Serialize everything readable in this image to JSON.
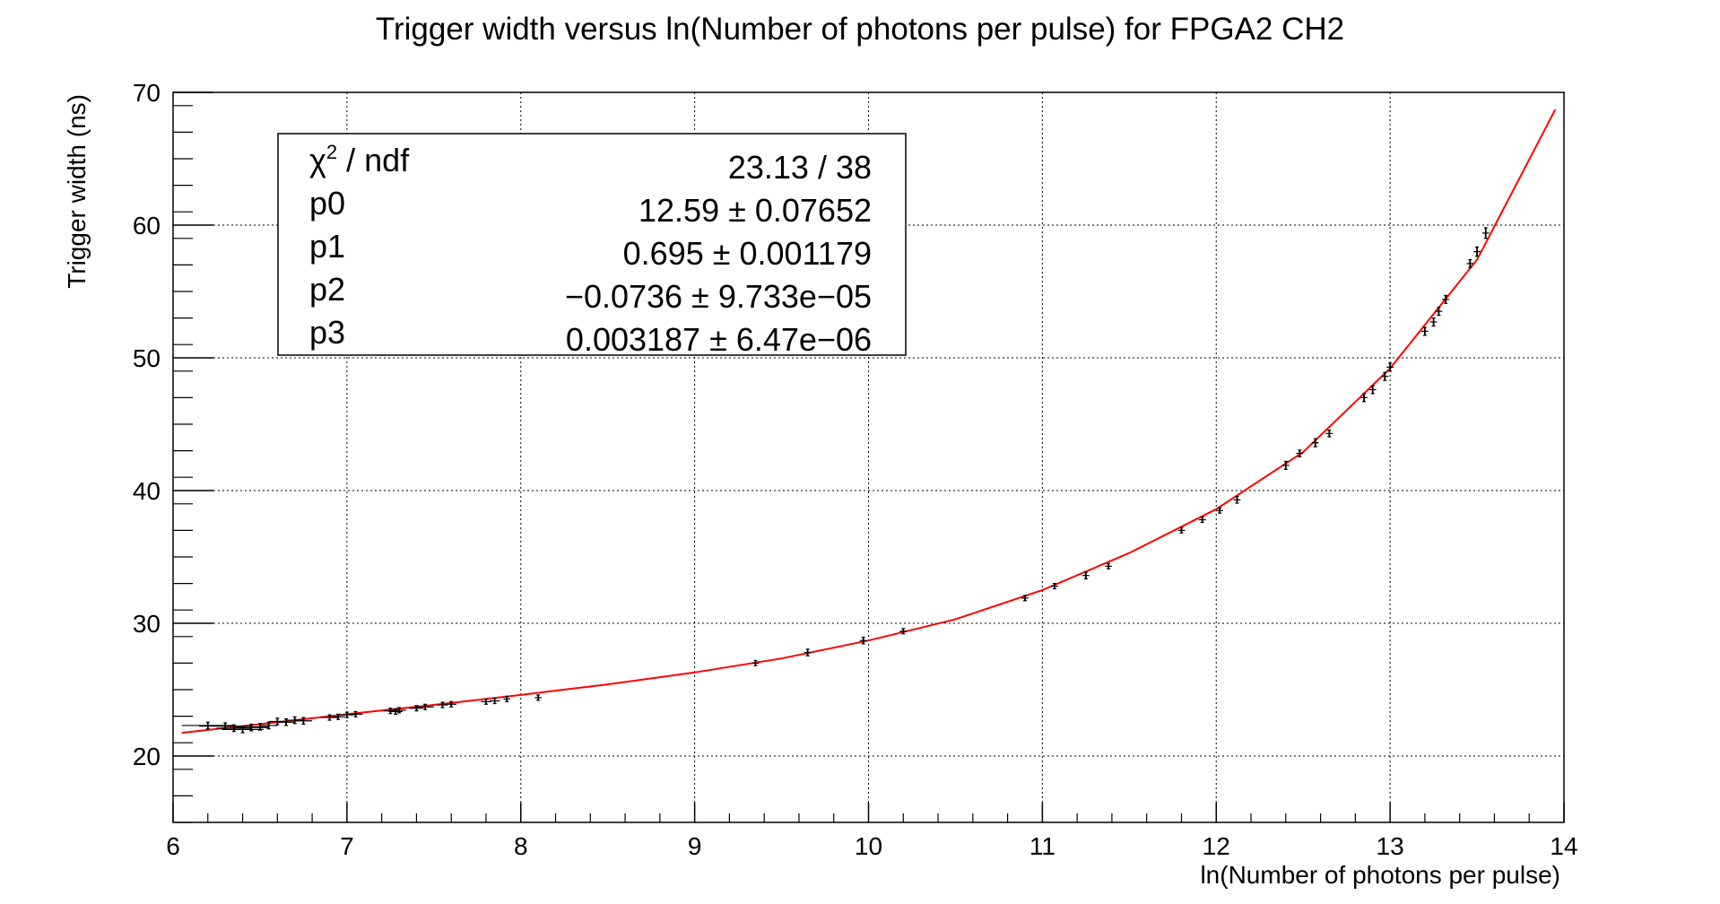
{
  "chart_data": {
    "type": "scatter",
    "title": "Trigger width versus ln(Number of photons per pulse) for FPGA2 CH2",
    "xlabel": "ln(Number of photons per pulse)",
    "ylabel": "Trigger width (ns)",
    "xlim": [
      6,
      14
    ],
    "ylim": [
      15,
      70
    ],
    "xticks": [
      6,
      7,
      8,
      9,
      10,
      11,
      12,
      13,
      14
    ],
    "yticks": [
      20,
      30,
      40,
      50,
      60,
      70
    ],
    "grid": true,
    "colors": {
      "fit": "#ff0000",
      "points": "#000000",
      "axes": "#000000",
      "grid": "#000000"
    },
    "stats_box": {
      "position": "top-left",
      "rows": [
        {
          "label_main": "χ",
          "label_sup": "2",
          "label_rest": " / ndf",
          "value": "23.13 / 38"
        },
        {
          "label_main": "p0",
          "label_sup": "",
          "label_rest": "",
          "value": "12.59 ± 0.07652"
        },
        {
          "label_main": "p1",
          "label_sup": "",
          "label_rest": "",
          "value": "0.695 ± 0.001179"
        },
        {
          "label_main": "p2",
          "label_sup": "",
          "label_rest": "",
          "value": "−0.0736 ± 9.733e−05"
        },
        {
          "label_main": "p3",
          "label_sup": "",
          "label_rest": "",
          "value": "0.003187 ± 6.47e−06"
        }
      ]
    },
    "series": [
      {
        "kind": "points",
        "x": [
          6.2,
          6.3,
          6.35,
          6.4,
          6.45,
          6.5,
          6.55,
          6.6,
          6.65,
          6.7,
          6.75,
          6.9,
          6.95,
          7.0,
          7.05,
          7.25,
          7.28,
          7.3,
          7.4,
          7.45,
          7.55,
          7.6,
          7.8,
          7.85,
          7.92,
          8.1,
          9.35,
          9.65,
          9.97,
          10.2,
          10.9,
          11.07,
          11.25,
          11.38,
          11.8,
          11.92,
          12.02,
          12.12,
          12.4,
          12.48,
          12.57,
          12.65,
          12.85,
          12.9,
          12.97,
          13.0,
          13.2,
          13.25,
          13.28,
          13.32,
          13.46,
          13.5,
          13.55
        ],
        "y": [
          22.3,
          22.25,
          22.1,
          22.0,
          22.15,
          22.2,
          22.3,
          22.6,
          22.55,
          22.7,
          22.65,
          22.9,
          22.95,
          23.1,
          23.15,
          23.4,
          23.35,
          23.45,
          23.6,
          23.7,
          23.85,
          23.9,
          24.1,
          24.15,
          24.3,
          24.4,
          27.0,
          27.8,
          28.7,
          29.4,
          31.9,
          32.8,
          33.6,
          34.3,
          37.0,
          37.8,
          38.5,
          39.3,
          41.9,
          42.8,
          43.6,
          44.3,
          47.0,
          47.6,
          48.6,
          49.3,
          52.0,
          52.7,
          53.5,
          54.4,
          57.1,
          58.0,
          59.4
        ],
        "yerr": [
          0.25,
          0.25,
          0.25,
          0.25,
          0.25,
          0.25,
          0.25,
          0.25,
          0.25,
          0.25,
          0.25,
          0.2,
          0.2,
          0.2,
          0.2,
          0.2,
          0.2,
          0.2,
          0.2,
          0.2,
          0.2,
          0.2,
          0.2,
          0.2,
          0.2,
          0.2,
          0.2,
          0.25,
          0.25,
          0.2,
          0.2,
          0.2,
          0.25,
          0.2,
          0.2,
          0.2,
          0.2,
          0.25,
          0.3,
          0.25,
          0.3,
          0.25,
          0.3,
          0.3,
          0.3,
          0.3,
          0.3,
          0.3,
          0.3,
          0.3,
          0.3,
          0.35,
          0.4
        ],
        "xerr": [
          0.15,
          0.15,
          0.1,
          0.12,
          0.1,
          0.05,
          0.05,
          0.05,
          0.05,
          0.05,
          0.05,
          0.05,
          0.04,
          0.04,
          0.04,
          0.04,
          0.04,
          0.04,
          0.04,
          0.05,
          0.03,
          0.03,
          0.03,
          0.03,
          0.02,
          0.02,
          0.02,
          0.02,
          0.02,
          0.02,
          0.02,
          0.02,
          0.02,
          0.02,
          0.02,
          0.02,
          0.02,
          0.02,
          0.02,
          0.02,
          0.02,
          0.02,
          0.02,
          0.02,
          0.02,
          0.02,
          0.02,
          0.02,
          0.02,
          0.02,
          0.02,
          0.02,
          0.02
        ]
      },
      {
        "kind": "fit",
        "x": [
          6.05,
          6.5,
          7.0,
          7.5,
          8.0,
          8.5,
          9.0,
          9.5,
          10.0,
          10.5,
          11.0,
          11.5,
          12.0,
          12.5,
          13.0,
          13.5,
          13.95
        ],
        "y": [
          21.75,
          22.4,
          23.15,
          23.85,
          24.6,
          25.4,
          26.3,
          27.35,
          28.7,
          30.3,
          32.5,
          35.3,
          38.6,
          42.9,
          49.2,
          57.4,
          68.7
        ]
      }
    ]
  }
}
